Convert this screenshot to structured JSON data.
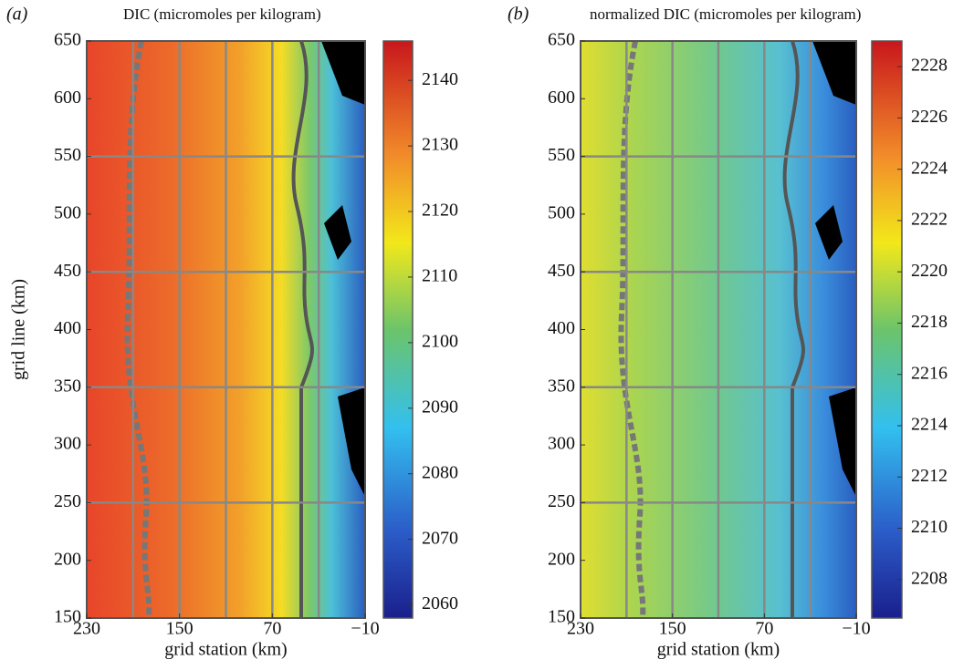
{
  "chart_data": [
    {
      "type": "contour",
      "panel_label": "(a)",
      "title": "DIC (micromoles per kilogram)",
      "xlabel": "grid station (km)",
      "ylabel": "grid line (km)",
      "colormap": "jet",
      "xlim": [
        230,
        -10
      ],
      "xticks": [
        230,
        150,
        70,
        {
          "value": -10,
          "label": "−10"
        }
      ],
      "ylim": [
        150,
        650
      ],
      "yticks": [
        150,
        200,
        250,
        300,
        350,
        400,
        450,
        500,
        550,
        600,
        650
      ],
      "grid_x": [
        190,
        150,
        110,
        70,
        30
      ],
      "grid_y": [
        250,
        350,
        450,
        550
      ],
      "clim": [
        2058,
        2146
      ],
      "cticks": [
        2060,
        2070,
        2080,
        2090,
        2100,
        2110,
        2120,
        2130,
        2140
      ]
    },
    {
      "type": "contour",
      "panel_label": "(b)",
      "title": "normalized DIC (micromoles per kilogram)",
      "xlabel": "grid station (km)",
      "colormap": "jet",
      "xlim": [
        230,
        -10
      ],
      "xticks": [
        230,
        150,
        70,
        {
          "value": -10,
          "label": "−10"
        }
      ],
      "ylim": [
        150,
        650
      ],
      "yticks": [
        150,
        200,
        250,
        300,
        350,
        400,
        450,
        500,
        550,
        600,
        650
      ],
      "grid_x": [
        190,
        150,
        110,
        70,
        30
      ],
      "grid_y": [
        250,
        350,
        450,
        550
      ],
      "clim": [
        2206.5,
        2229
      ],
      "cticks": [
        2208,
        2210,
        2212,
        2214,
        2216,
        2218,
        2220,
        2222,
        2224,
        2226,
        2228
      ]
    }
  ]
}
